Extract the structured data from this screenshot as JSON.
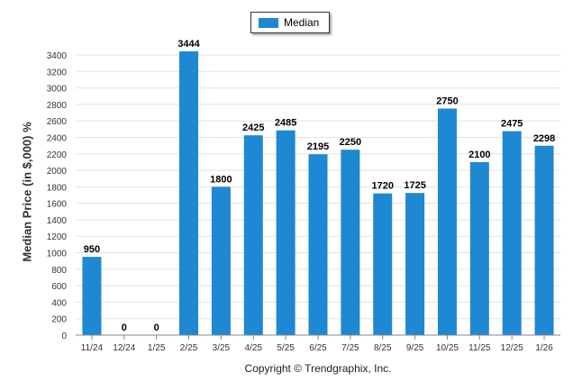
{
  "chart_data": {
    "type": "bar",
    "categories": [
      "11/24",
      "12/24",
      "1/25",
      "2/25",
      "3/25",
      "4/25",
      "5/25",
      "6/25",
      "7/25",
      "8/25",
      "9/25",
      "10/25",
      "11/25",
      "12/25",
      "1/26"
    ],
    "series": [
      {
        "name": "Median",
        "values": [
          950,
          0,
          0,
          3444,
          1800,
          2425,
          2485,
          2195,
          2250,
          1720,
          1725,
          2750,
          2100,
          2475,
          2298
        ]
      }
    ],
    "data_labels": [
      "950",
      "0",
      "0",
      "3444",
      "1800",
      "2425",
      "2485",
      "2195",
      "2250",
      "1720",
      "1725",
      "2750",
      "2100",
      "2475",
      "2298"
    ],
    "ylabel": "Median Price (in $,000) %",
    "xlabel": "",
    "ylim": [
      0,
      3400
    ],
    "yticks": [
      0,
      200,
      400,
      600,
      800,
      1000,
      1200,
      1400,
      1600,
      1800,
      2000,
      2200,
      2400,
      2600,
      2800,
      3000,
      3200,
      3400
    ],
    "grid": true,
    "legend": "top-center",
    "bar_color": "#1e88d2"
  },
  "footer": {
    "copyright": "Copyright © Trendgraphix, Inc."
  }
}
